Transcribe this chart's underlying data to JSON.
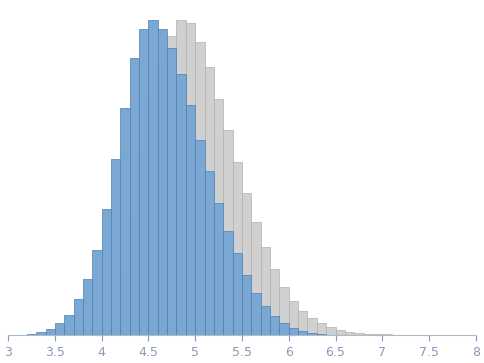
{
  "title": "",
  "xlim": [
    3,
    8
  ],
  "xticks": [
    3,
    3.5,
    4,
    4.5,
    5,
    5.5,
    6,
    6.5,
    7,
    7.5,
    8
  ],
  "blue_color": "#7aa8d2",
  "blue_edge": "#4a7fb5",
  "gray_color": "#d0d0d0",
  "gray_edge": "#b0b0b0",
  "bin_width": 0.1,
  "blue_bins": [
    3.25,
    3.35,
    3.45,
    3.55,
    3.65,
    3.75,
    3.85,
    3.95,
    4.05,
    4.15,
    4.25,
    4.35,
    4.45,
    4.55,
    4.65,
    4.75,
    4.85,
    4.95,
    5.05,
    5.15,
    5.25,
    5.35,
    5.45,
    5.55,
    5.65,
    5.75,
    5.85,
    5.95,
    6.05,
    6.15,
    6.25,
    6.35,
    6.45
  ],
  "blue_heights": [
    0.004,
    0.01,
    0.02,
    0.038,
    0.065,
    0.115,
    0.18,
    0.27,
    0.4,
    0.56,
    0.72,
    0.88,
    0.97,
    1.0,
    0.97,
    0.91,
    0.83,
    0.73,
    0.62,
    0.52,
    0.42,
    0.33,
    0.26,
    0.19,
    0.135,
    0.092,
    0.06,
    0.038,
    0.023,
    0.014,
    0.008,
    0.004,
    0.002
  ],
  "gray_bins": [
    4.25,
    4.35,
    4.45,
    4.55,
    4.65,
    4.75,
    4.85,
    4.95,
    5.05,
    5.15,
    5.25,
    5.35,
    5.45,
    5.55,
    5.65,
    5.75,
    5.85,
    5.95,
    6.05,
    6.15,
    6.25,
    6.35,
    6.45,
    6.55,
    6.65,
    6.75,
    6.85,
    6.95,
    7.05,
    7.15,
    7.25,
    7.35,
    7.45
  ],
  "gray_heights": [
    0.2,
    0.38,
    0.58,
    0.74,
    0.86,
    0.95,
    1.0,
    0.99,
    0.93,
    0.85,
    0.75,
    0.65,
    0.55,
    0.45,
    0.36,
    0.28,
    0.21,
    0.155,
    0.11,
    0.078,
    0.054,
    0.038,
    0.026,
    0.018,
    0.012,
    0.008,
    0.006,
    0.004,
    0.003,
    0.002,
    0.0015,
    0.001,
    0.0005
  ]
}
